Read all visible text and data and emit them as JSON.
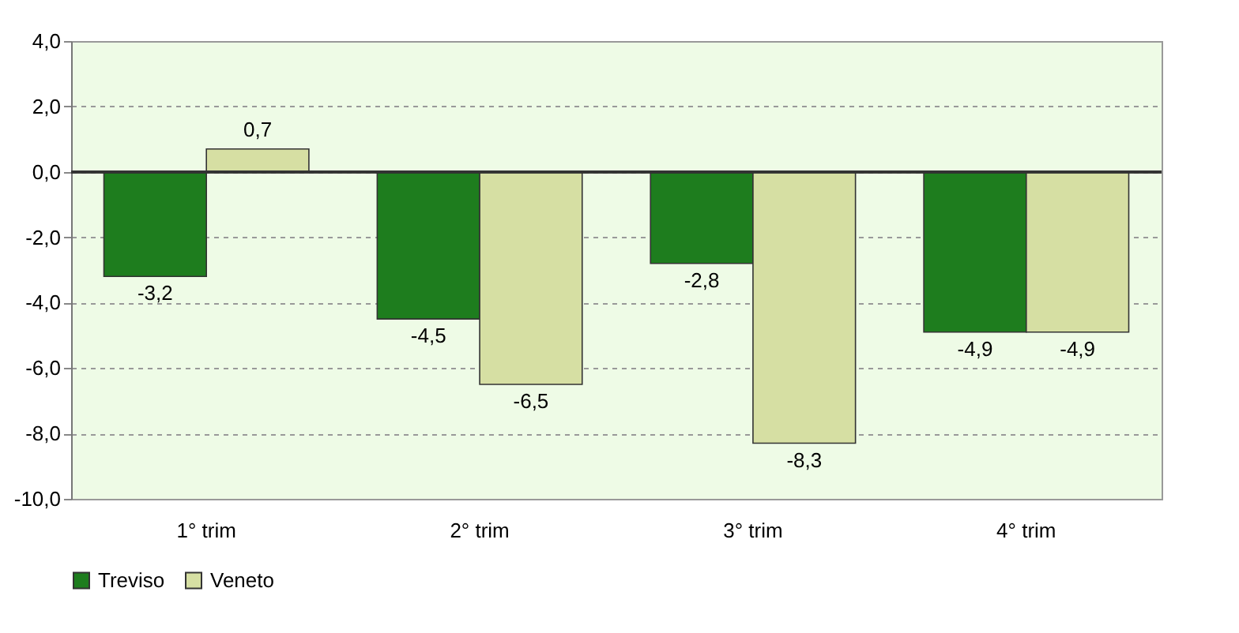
{
  "chart_data": {
    "type": "bar",
    "categories": [
      "1° trim",
      "2° trim",
      "3° trim",
      "4° trim"
    ],
    "series": [
      {
        "name": "Treviso",
        "color": "#1e7d1e",
        "values": [
          -3.2,
          -4.5,
          -2.8,
          -4.9
        ],
        "value_labels": [
          "-3,2",
          "-4,5",
          "-2,8",
          "-4,9"
        ]
      },
      {
        "name": "Veneto",
        "color": "#d6dfa3",
        "values": [
          0.7,
          -6.5,
          -8.3,
          -4.9
        ],
        "value_labels": [
          "0,7",
          "-6,5",
          "-8,3",
          "-4,9"
        ]
      }
    ],
    "ylim": [
      -10,
      4
    ],
    "yticks": [
      {
        "value": -10,
        "label": "-10,0"
      },
      {
        "value": -8,
        "label": "-8,0"
      },
      {
        "value": -6,
        "label": "-6,0"
      },
      {
        "value": -4,
        "label": "-4,0"
      },
      {
        "value": -2,
        "label": "-2,0"
      },
      {
        "value": 0,
        "label": "0,0"
      },
      {
        "value": 2,
        "label": "2,0"
      },
      {
        "value": 4,
        "label": "4,0"
      }
    ],
    "grid": "y",
    "legend": "bottom"
  }
}
